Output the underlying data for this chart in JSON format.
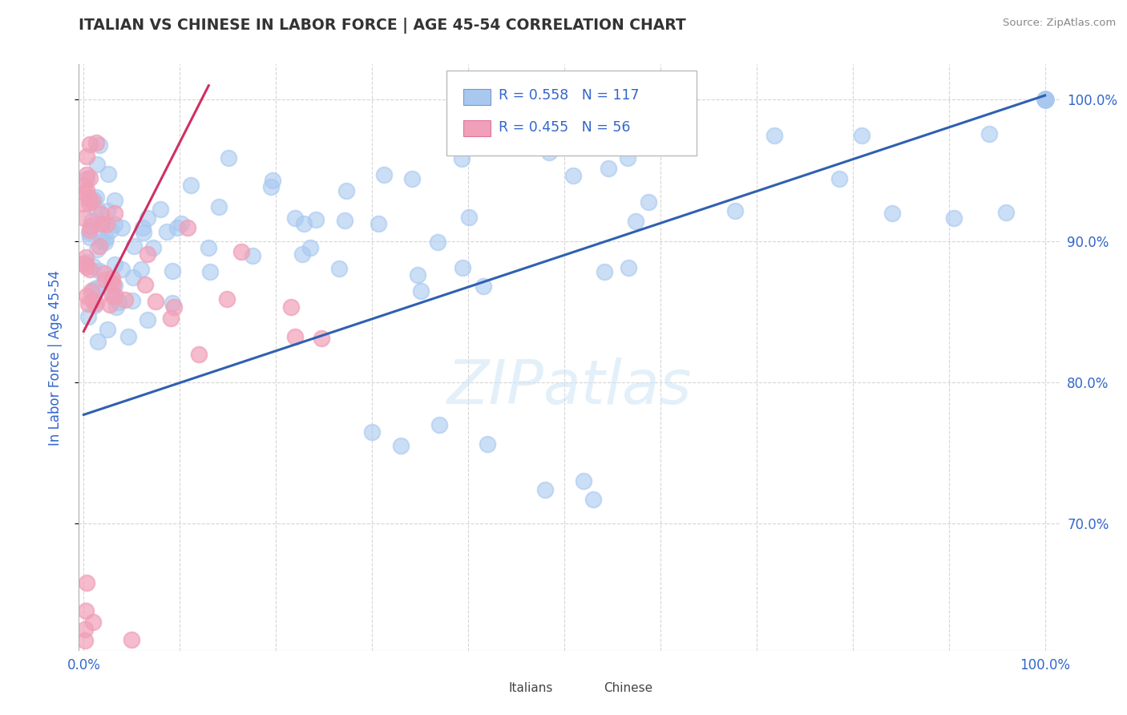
{
  "title": "ITALIAN VS CHINESE IN LABOR FORCE | AGE 45-54 CORRELATION CHART",
  "source": "Source: ZipAtlas.com",
  "ylabel": "In Labor Force | Age 45-54",
  "legend_italian": {
    "R": "0.558",
    "N": "117"
  },
  "legend_chinese": {
    "R": "0.455",
    "N": "56"
  },
  "watermark": "ZIPatlas",
  "blue_color": "#a8c8f0",
  "pink_color": "#f0a0b8",
  "blue_line_color": "#3060b0",
  "pink_line_color": "#d03060",
  "legend_text_color": "#3366cc",
  "title_color": "#333333",
  "axis_label_color": "#3366cc",
  "grid_color": "#cccccc",
  "ylim_low": 0.61,
  "ylim_high": 1.025,
  "xlim_low": -0.005,
  "xlim_high": 1.015,
  "yticks": [
    0.7,
    0.8,
    0.9,
    1.0
  ],
  "ytick_labels": [
    "70.0%",
    "80.0%",
    "90.0%",
    "100.0%"
  ],
  "xticks": [
    0.0,
    0.1,
    0.2,
    0.3,
    0.4,
    0.5,
    0.6,
    0.7,
    0.8,
    0.9,
    1.0
  ],
  "xtick_labels": [
    "0.0%",
    "",
    "",
    "",
    "",
    "",
    "",
    "",
    "",
    "",
    "100.0%"
  ],
  "blue_line_x": [
    0.0,
    1.0
  ],
  "blue_line_y": [
    0.777,
    1.003
  ],
  "pink_line_x": [
    0.0,
    0.13
  ],
  "pink_line_y": [
    0.836,
    1.01
  ]
}
